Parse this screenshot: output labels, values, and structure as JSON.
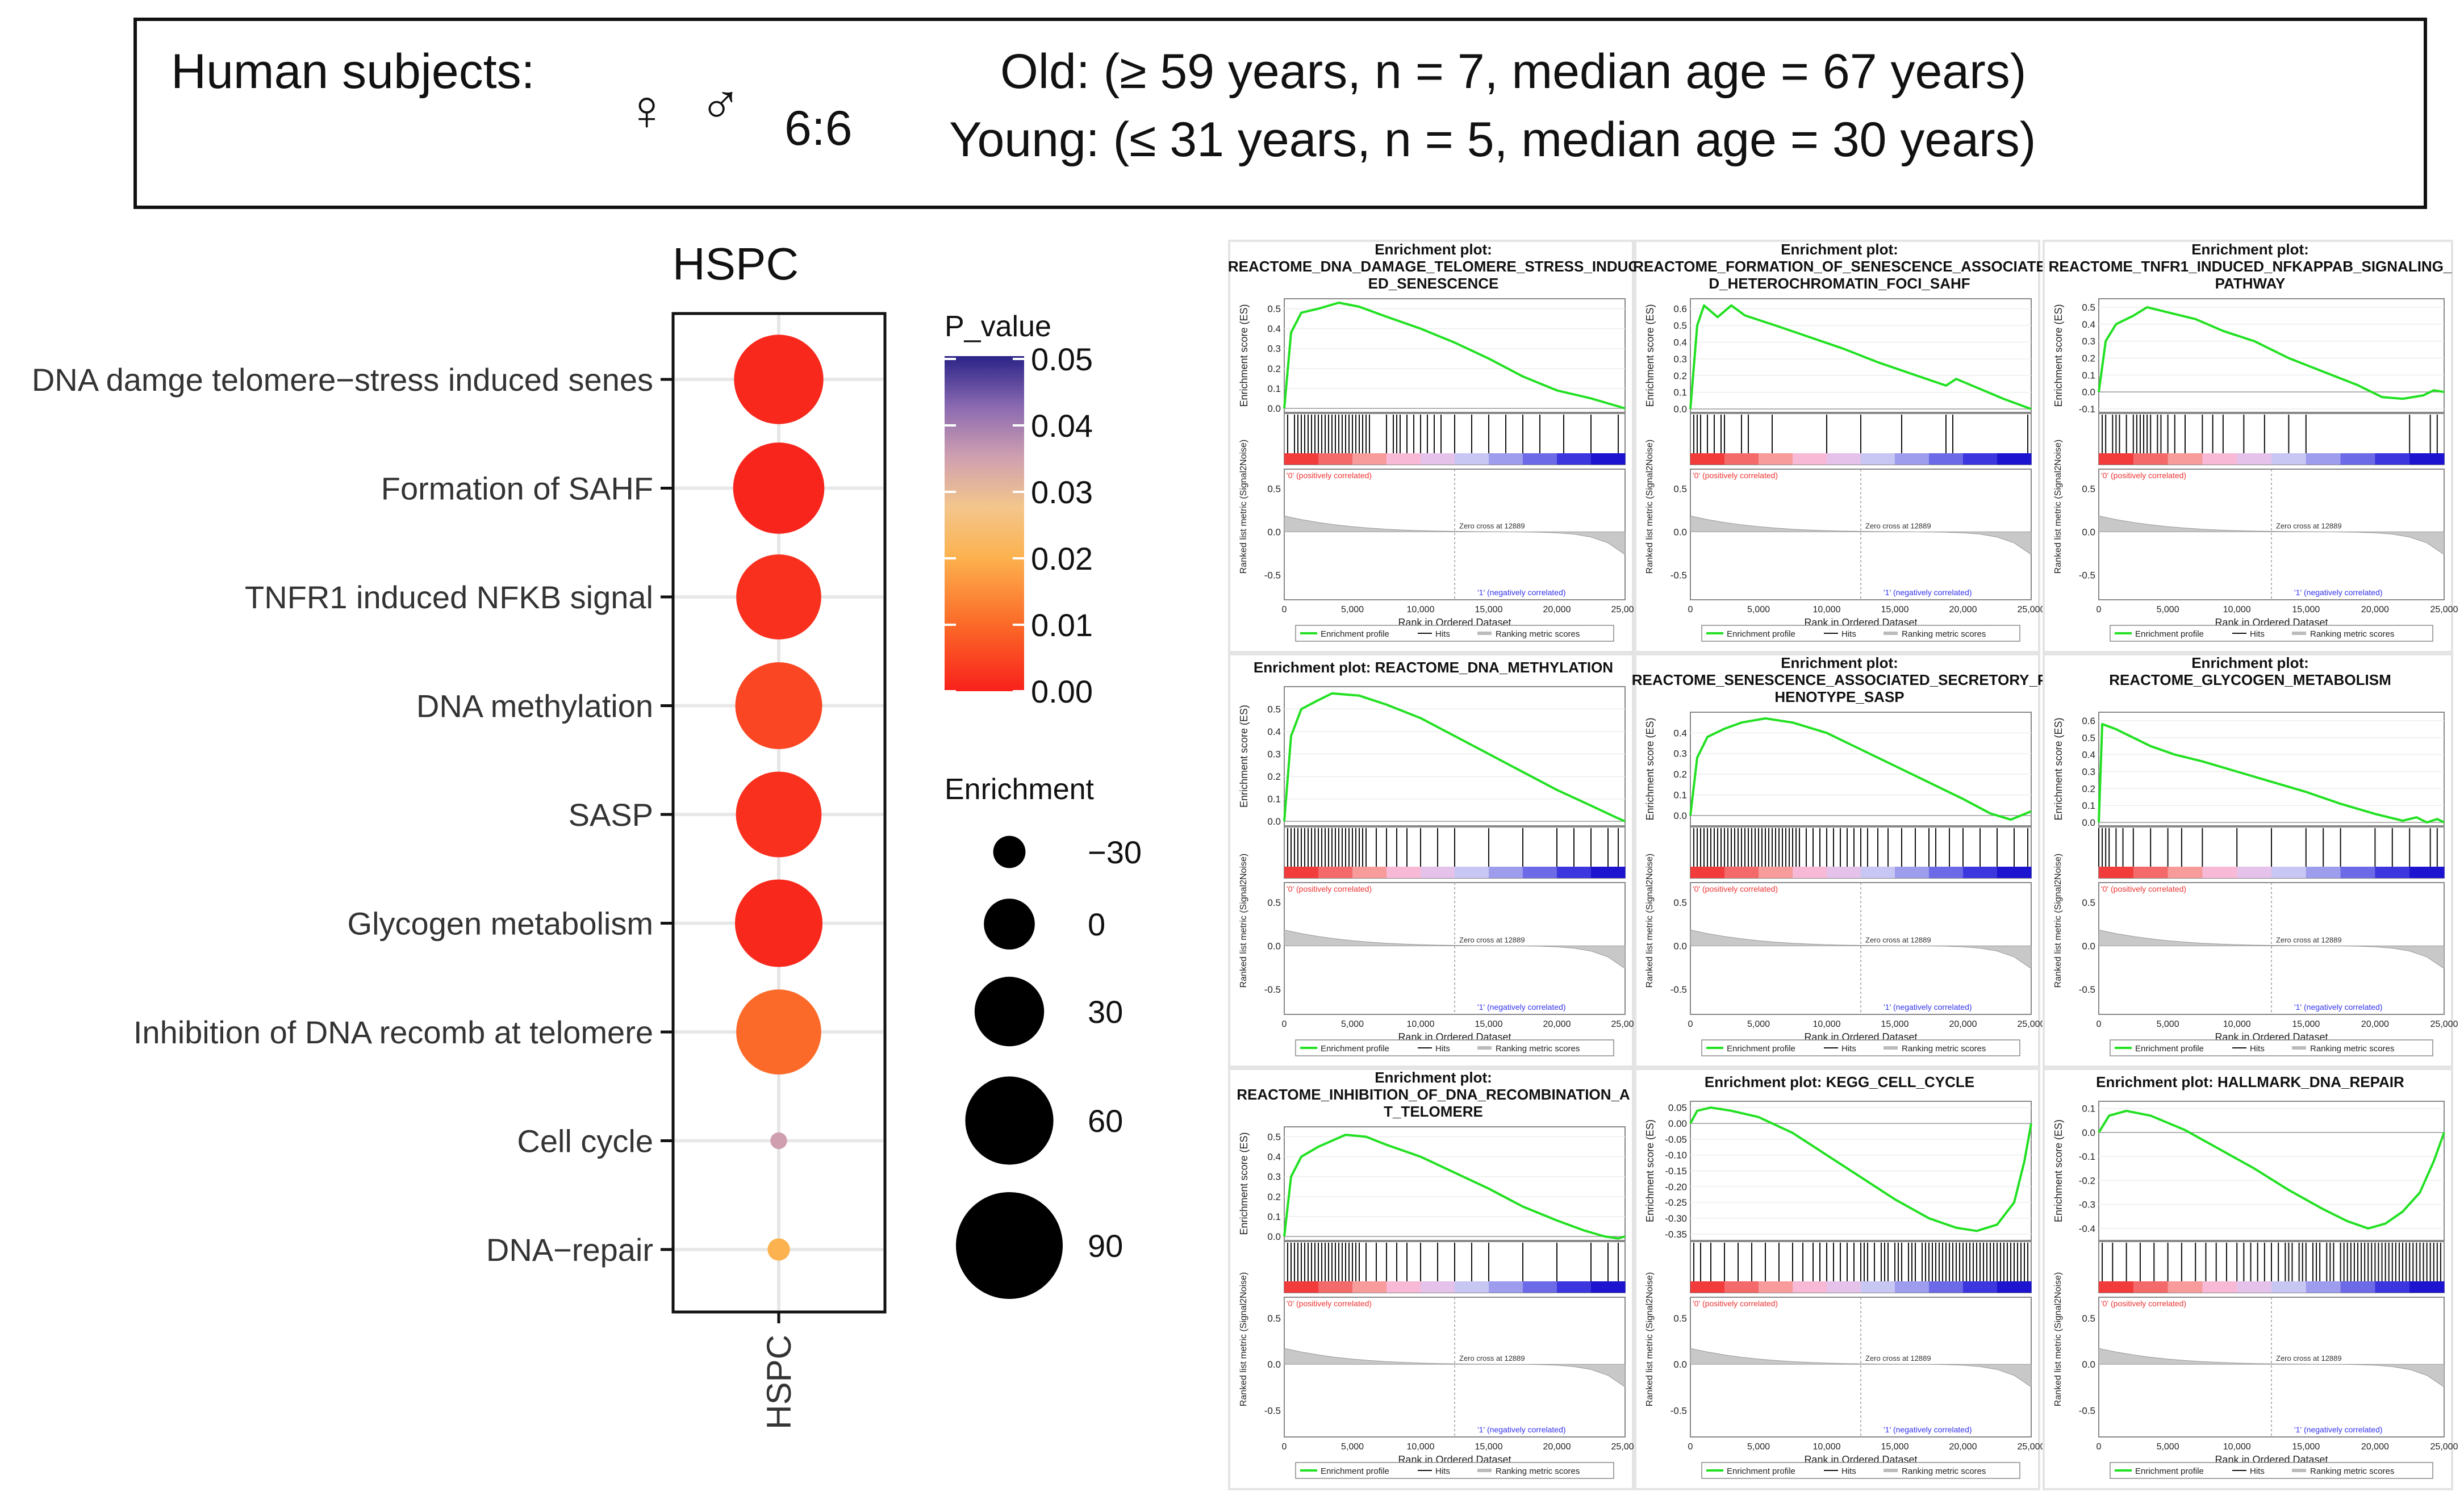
{
  "header": {
    "subjects_label": "Human subjects:",
    "female_symbol": "♀",
    "male_symbol": "♂",
    "sex_ratio": "6:6",
    "old_line": "Old: (≥ 59 years, n = 7, median age = 67 years)",
    "young_line": "Young: (≤ 31 years, n = 5, median age = 30 years)"
  },
  "chart_data": [
    {
      "type": "scatter",
      "title": "HSPC",
      "xlabel": "",
      "ylabel": "",
      "x_categories": [
        "HSPC"
      ],
      "legend_color": {
        "title": "P_value",
        "ticks": [
          "0.05",
          "0.04",
          "0.03",
          "0.02",
          "0.01",
          "0.00"
        ],
        "range": [
          0,
          0.05
        ],
        "colors": [
          "#f8211b",
          "#fb5a22",
          "#fb8f33",
          "#fcc36b",
          "#e4a8a0",
          "#a07bb6",
          "#4a3e9d",
          "#2a2387"
        ]
      },
      "legend_size": {
        "title": "Enrichment",
        "ticks": [
          "−30",
          "0",
          "30",
          "60",
          "90"
        ],
        "values": [
          -30,
          0,
          30,
          60,
          90
        ]
      },
      "points": [
        {
          "term": "DNA damge telomere−stress induced senes",
          "enrichment": 62,
          "p_value": 0.001
        },
        {
          "term": "Formation of SAHF",
          "enrichment": 65,
          "p_value": 0.0005
        },
        {
          "term": "TNFR1 induced NFKB signal",
          "enrichment": 55,
          "p_value": 0.002
        },
        {
          "term": "DNA methylation",
          "enrichment": 58,
          "p_value": 0.005
        },
        {
          "term": "SASP",
          "enrichment": 56,
          "p_value": 0.002
        },
        {
          "term": "Glycogen metabolism",
          "enrichment": 59,
          "p_value": 0.001
        },
        {
          "term": "Inhibition of DNA recomb at telomere",
          "enrichment": 55,
          "p_value": 0.01
        },
        {
          "term": "Cell cycle",
          "enrichment": -55,
          "p_value": 0.035
        },
        {
          "term": "DNA−repair",
          "enrichment": -46,
          "p_value": 0.02
        }
      ]
    }
  ],
  "gsea": {
    "x_ticks": [
      "0",
      "5,000",
      "10,000",
      "15,000",
      "20,000",
      "25,000"
    ],
    "x_label": "Rank in Ordered Dataset",
    "y_label_es": "Enrichment score (ES)",
    "y_label_rank": "Ranked list metric (Signal2Noise)",
    "rank_ticks": [
      "0.5",
      "0.0",
      "-0.5"
    ],
    "pos_label": "'0' (positively correlated)",
    "neg_label": "'1' (negatively correlated)",
    "zero_cross": "Zero cross at 12889",
    "legend_profile": "Enrichment profile",
    "legend_hits": "Hits",
    "legend_metric": "Ranking metric scores",
    "panels": [
      {
        "title_lines": [
          "Enrichment plot:",
          "REACTOME_DNA_DAMAGE_TELOMERE_STRESS_INDUC",
          "ED_SENESCENCE"
        ],
        "es_ticks": [
          "0.5",
          "0.4",
          "0.3",
          "0.2",
          "0.1",
          "0.0"
        ],
        "es_range": [
          -0.02,
          0.55
        ],
        "es_curve": [
          0,
          0.0,
          0.02,
          0.38,
          0.05,
          0.48,
          0.1,
          0.5,
          0.16,
          0.53,
          0.22,
          0.51,
          0.3,
          0.46,
          0.4,
          0.4,
          0.5,
          0.33,
          0.6,
          0.25,
          0.7,
          0.16,
          0.8,
          0.09,
          0.9,
          0.05,
          0.96,
          0.02,
          1.0,
          0.0
        ],
        "hits": [
          0.01,
          0.03,
          0.04,
          0.05,
          0.06,
          0.07,
          0.08,
          0.09,
          0.1,
          0.11,
          0.12,
          0.13,
          0.14,
          0.15,
          0.16,
          0.17,
          0.18,
          0.19,
          0.2,
          0.21,
          0.22,
          0.23,
          0.24,
          0.25,
          0.3,
          0.32,
          0.33,
          0.34,
          0.36,
          0.38,
          0.4,
          0.42,
          0.44,
          0.46,
          0.5,
          0.55,
          0.6,
          0.65,
          0.7,
          0.75,
          0.82,
          0.9,
          0.98
        ]
      },
      {
        "title_lines": [
          "Enrichment plot:",
          "REACTOME_FORMATION_OF_SENESCENCE_ASSOCIATE",
          "D_HETEROCHROMATIN_FOCI_SAHF"
        ],
        "es_ticks": [
          "0.6",
          "0.5",
          "0.4",
          "0.3",
          "0.2",
          "0.1",
          "0.0"
        ],
        "es_range": [
          -0.02,
          0.66
        ],
        "es_curve": [
          0,
          0.0,
          0.02,
          0.5,
          0.04,
          0.62,
          0.08,
          0.55,
          0.12,
          0.62,
          0.16,
          0.56,
          0.25,
          0.5,
          0.35,
          0.43,
          0.45,
          0.36,
          0.55,
          0.28,
          0.65,
          0.21,
          0.75,
          0.14,
          0.78,
          0.18,
          0.85,
          0.12,
          0.92,
          0.06,
          1.0,
          0.0
        ],
        "hits": [
          0.01,
          0.02,
          0.03,
          0.05,
          0.07,
          0.09,
          0.1,
          0.15,
          0.17,
          0.24,
          0.4,
          0.5,
          0.62,
          0.75,
          0.77,
          0.99
        ]
      },
      {
        "title_lines": [
          "Enrichment plot:",
          "REACTOME_TNFR1_INDUCED_NFKAPPAB_SIGNALING_",
          "PATHWAY"
        ],
        "es_ticks": [
          "0.5",
          "0.4",
          "0.3",
          "0.2",
          "0.1",
          "0.0",
          "-0.1"
        ],
        "es_range": [
          -0.12,
          0.55
        ],
        "es_curve": [
          0,
          0.0,
          0.02,
          0.3,
          0.05,
          0.4,
          0.1,
          0.45,
          0.14,
          0.5,
          0.2,
          0.47,
          0.28,
          0.43,
          0.36,
          0.36,
          0.45,
          0.3,
          0.55,
          0.2,
          0.65,
          0.12,
          0.75,
          0.04,
          0.82,
          -0.03,
          0.88,
          -0.04,
          0.94,
          -0.02,
          0.97,
          0.01,
          1.0,
          0.0
        ],
        "hits": [
          0.01,
          0.02,
          0.04,
          0.05,
          0.06,
          0.08,
          0.1,
          0.11,
          0.12,
          0.13,
          0.14,
          0.15,
          0.17,
          0.18,
          0.2,
          0.22,
          0.25,
          0.3,
          0.33,
          0.36,
          0.42,
          0.48,
          0.55,
          0.6,
          0.9,
          0.96,
          0.98
        ]
      },
      {
        "title_lines": [
          "Enrichment plot: REACTOME_DNA_METHYLATION"
        ],
        "es_ticks": [
          "0.5",
          "0.4",
          "0.3",
          "0.2",
          "0.1",
          "0.0"
        ],
        "es_range": [
          -0.02,
          0.6
        ],
        "es_curve": [
          0,
          0.0,
          0.02,
          0.38,
          0.05,
          0.5,
          0.1,
          0.54,
          0.14,
          0.57,
          0.22,
          0.56,
          0.3,
          0.52,
          0.4,
          0.46,
          0.5,
          0.38,
          0.6,
          0.3,
          0.7,
          0.22,
          0.8,
          0.14,
          0.9,
          0.07,
          0.97,
          0.02,
          1.0,
          0.0
        ],
        "hits": [
          0.01,
          0.02,
          0.03,
          0.04,
          0.05,
          0.06,
          0.07,
          0.08,
          0.09,
          0.1,
          0.11,
          0.12,
          0.13,
          0.14,
          0.15,
          0.16,
          0.17,
          0.18,
          0.19,
          0.2,
          0.21,
          0.22,
          0.23,
          0.24,
          0.27,
          0.3,
          0.33,
          0.36,
          0.4,
          0.45,
          0.5,
          0.6,
          0.7,
          0.8,
          0.85,
          0.9,
          0.95,
          0.98
        ]
      },
      {
        "title_lines": [
          "Enrichment plot:",
          "REACTOME_SENESCENCE_ASSOCIATED_SECRETORY_P",
          "HENOTYPE_SASP"
        ],
        "es_ticks": [
          "0.4",
          "0.3",
          "0.2",
          "0.1",
          "0.0"
        ],
        "es_range": [
          -0.05,
          0.5
        ],
        "es_curve": [
          0,
          0.0,
          0.02,
          0.28,
          0.05,
          0.38,
          0.1,
          0.42,
          0.15,
          0.45,
          0.22,
          0.47,
          0.3,
          0.45,
          0.4,
          0.4,
          0.5,
          0.32,
          0.6,
          0.24,
          0.7,
          0.16,
          0.8,
          0.08,
          0.88,
          0.01,
          0.94,
          -0.02,
          0.97,
          0.0,
          1.0,
          0.02
        ],
        "hits": [
          0.01,
          0.02,
          0.03,
          0.04,
          0.05,
          0.06,
          0.07,
          0.08,
          0.09,
          0.1,
          0.11,
          0.12,
          0.13,
          0.14,
          0.15,
          0.16,
          0.17,
          0.18,
          0.19,
          0.2,
          0.21,
          0.22,
          0.23,
          0.24,
          0.25,
          0.26,
          0.27,
          0.28,
          0.29,
          0.3,
          0.31,
          0.32,
          0.34,
          0.36,
          0.38,
          0.4,
          0.42,
          0.44,
          0.46,
          0.48,
          0.5,
          0.52,
          0.55,
          0.58,
          0.62,
          0.66,
          0.7,
          0.72,
          0.76,
          0.8,
          0.85,
          0.9,
          0.95,
          0.99
        ]
      },
      {
        "title_lines": [
          "Enrichment plot:",
          "REACTOME_GLYCOGEN_METABOLISM"
        ],
        "es_ticks": [
          "0.6",
          "0.5",
          "0.4",
          "0.3",
          "0.2",
          "0.1",
          "0.0"
        ],
        "es_range": [
          -0.02,
          0.65
        ],
        "es_curve": [
          0,
          0.0,
          0.01,
          0.58,
          0.05,
          0.55,
          0.1,
          0.5,
          0.15,
          0.45,
          0.22,
          0.4,
          0.3,
          0.36,
          0.4,
          0.3,
          0.5,
          0.24,
          0.6,
          0.18,
          0.7,
          0.11,
          0.8,
          0.05,
          0.88,
          0.01,
          0.92,
          0.03,
          0.95,
          0.0,
          0.98,
          0.02,
          1.0,
          0.0
        ],
        "hits": [
          0.0,
          0.01,
          0.02,
          0.03,
          0.05,
          0.07,
          0.1,
          0.15,
          0.2,
          0.24,
          0.3,
          0.4,
          0.5,
          0.6,
          0.65,
          0.7,
          0.8,
          0.85,
          0.9,
          0.96,
          0.98
        ]
      },
      {
        "title_lines": [
          "Enrichment plot:",
          "REACTOME_INHIBITION_OF_DNA_RECOMBINATION_A",
          "T_TELOMERE"
        ],
        "es_ticks": [
          "0.5",
          "0.4",
          "0.3",
          "0.2",
          "0.1",
          "0.0"
        ],
        "es_range": [
          -0.02,
          0.55
        ],
        "es_curve": [
          0,
          0.0,
          0.02,
          0.3,
          0.05,
          0.4,
          0.1,
          0.45,
          0.18,
          0.51,
          0.24,
          0.5,
          0.3,
          0.46,
          0.4,
          0.4,
          0.5,
          0.32,
          0.6,
          0.24,
          0.7,
          0.15,
          0.8,
          0.08,
          0.88,
          0.03,
          0.94,
          0.0,
          0.98,
          -0.01,
          1.0,
          0.0
        ],
        "hits": [
          0.01,
          0.02,
          0.03,
          0.04,
          0.05,
          0.06,
          0.07,
          0.08,
          0.09,
          0.1,
          0.11,
          0.12,
          0.13,
          0.14,
          0.15,
          0.16,
          0.17,
          0.18,
          0.19,
          0.2,
          0.21,
          0.22,
          0.24,
          0.27,
          0.3,
          0.33,
          0.36,
          0.4,
          0.45,
          0.5,
          0.55,
          0.6,
          0.7,
          0.8,
          0.9,
          0.95,
          0.98
        ]
      },
      {
        "title_lines": [
          "Enrichment plot: KEGG_CELL_CYCLE"
        ],
        "es_ticks": [
          "0.05",
          "0.00",
          "-0.05",
          "-0.10",
          "-0.15",
          "-0.20",
          "-0.25",
          "-0.30",
          "-0.35"
        ],
        "es_range": [
          -0.37,
          0.07
        ],
        "es_curve": [
          0,
          0.0,
          0.02,
          0.04,
          0.06,
          0.05,
          0.12,
          0.04,
          0.2,
          0.02,
          0.3,
          -0.03,
          0.4,
          -0.1,
          0.5,
          -0.17,
          0.6,
          -0.24,
          0.7,
          -0.3,
          0.78,
          -0.33,
          0.84,
          -0.34,
          0.9,
          -0.32,
          0.95,
          -0.25,
          0.98,
          -0.12,
          1.0,
          0.0
        ],
        "hits": [
          0.01,
          0.03,
          0.06,
          0.1,
          0.14,
          0.18,
          0.22,
          0.26,
          0.3,
          0.33,
          0.36,
          0.38,
          0.4,
          0.42,
          0.44,
          0.46,
          0.48,
          0.5,
          0.51,
          0.52,
          0.54,
          0.56,
          0.57,
          0.58,
          0.6,
          0.61,
          0.62,
          0.64,
          0.65,
          0.66,
          0.68,
          0.69,
          0.7,
          0.71,
          0.72,
          0.73,
          0.74,
          0.75,
          0.76,
          0.77,
          0.78,
          0.79,
          0.8,
          0.81,
          0.82,
          0.83,
          0.84,
          0.85,
          0.86,
          0.87,
          0.88,
          0.89,
          0.9,
          0.91,
          0.92,
          0.93,
          0.94,
          0.95,
          0.96,
          0.97,
          0.98,
          0.99
        ]
      },
      {
        "title_lines": [
          "Enrichment plot: HALLMARK_DNA_REPAIR"
        ],
        "es_ticks": [
          "0.1",
          "0.0",
          "-0.1",
          "-0.2",
          "-0.3",
          "-0.4"
        ],
        "es_range": [
          -0.45,
          0.13
        ],
        "es_curve": [
          0,
          0.0,
          0.03,
          0.07,
          0.08,
          0.09,
          0.15,
          0.07,
          0.25,
          0.01,
          0.35,
          -0.07,
          0.45,
          -0.15,
          0.55,
          -0.24,
          0.65,
          -0.32,
          0.72,
          -0.37,
          0.78,
          -0.4,
          0.83,
          -0.38,
          0.88,
          -0.33,
          0.93,
          -0.25,
          0.97,
          -0.12,
          1.0,
          0.0
        ],
        "hits": [
          0.01,
          0.04,
          0.08,
          0.12,
          0.16,
          0.2,
          0.24,
          0.28,
          0.31,
          0.34,
          0.37,
          0.4,
          0.42,
          0.44,
          0.46,
          0.48,
          0.5,
          0.52,
          0.54,
          0.55,
          0.56,
          0.58,
          0.59,
          0.6,
          0.62,
          0.63,
          0.64,
          0.66,
          0.67,
          0.68,
          0.7,
          0.71,
          0.72,
          0.73,
          0.74,
          0.75,
          0.76,
          0.77,
          0.78,
          0.79,
          0.8,
          0.81,
          0.82,
          0.83,
          0.84,
          0.85,
          0.86,
          0.87,
          0.88,
          0.89,
          0.9,
          0.91,
          0.92,
          0.93,
          0.94,
          0.95,
          0.96,
          0.97,
          0.98,
          0.99
        ]
      }
    ]
  }
}
